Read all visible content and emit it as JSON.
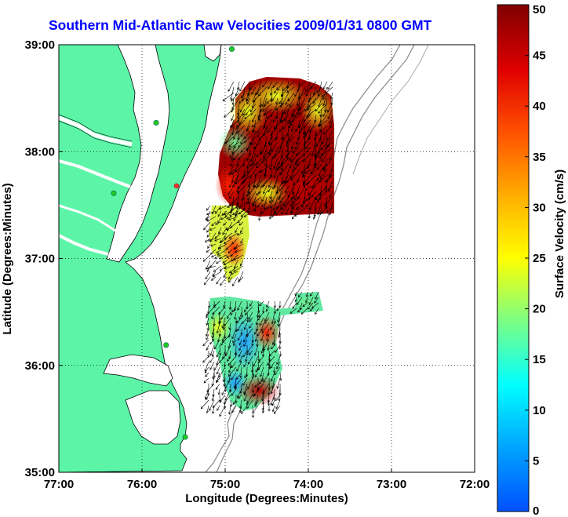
{
  "title": "Southern Mid-Atlantic Raw Velocities 2009/01/31 0800 GMT",
  "map": {
    "xlabel": "Longitude (Degrees:Minutes)",
    "ylabel": "Latitude (Degrees:Minutes)",
    "lon_range": [
      -77,
      -72
    ],
    "lat_range": [
      35,
      39
    ],
    "x_ticks": [
      "77:00",
      "76:00",
      "75:00",
      "74:00",
      "73:00",
      "72:00"
    ],
    "y_ticks": [
      "39:00",
      "38:00",
      "37:00",
      "36:00",
      "35:00"
    ],
    "grid": "dotted",
    "land_color": "#5cf5a8",
    "station_color": "#22cc22",
    "stations": [
      {
        "lon": -74.92,
        "lat": 38.96
      },
      {
        "lon": -75.83,
        "lat": 38.27
      },
      {
        "lon": -76.34,
        "lat": 37.61
      },
      {
        "lon": -75.71,
        "lat": 36.19
      },
      {
        "lon": -75.48,
        "lat": 35.33
      }
    ]
  },
  "colorbar": {
    "label": "Surface Velocity (cm/s)",
    "min": 0,
    "max": 50,
    "ticks": [
      "0",
      "5",
      "10",
      "15",
      "20",
      "25",
      "30",
      "35",
      "40",
      "45",
      "50"
    ],
    "colormap": "jet"
  }
}
